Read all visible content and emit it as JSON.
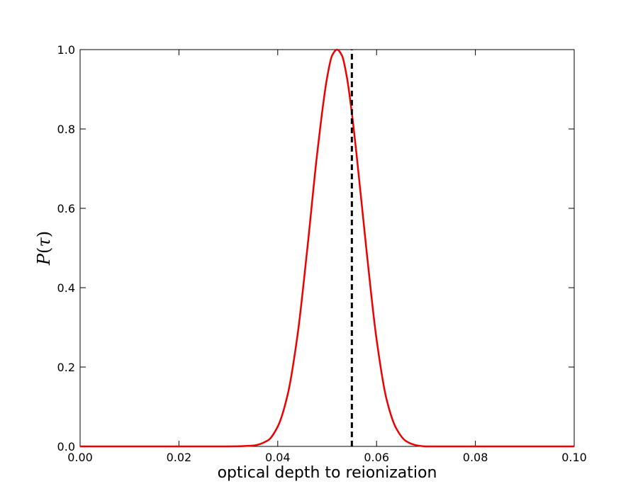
{
  "chart_data": {
    "type": "line",
    "xlabel": "optical depth to reionization",
    "ylabel": "P(τ)",
    "ylabel_parts": {
      "italic_p": "P",
      "open_paren": "(",
      "tau": "τ",
      "close_paren": ")"
    },
    "xlim": [
      0.0,
      0.1
    ],
    "ylim": [
      0.0,
      1.0
    ],
    "xticks": [
      0.0,
      0.02,
      0.04,
      0.06,
      0.08,
      0.1
    ],
    "xtick_labels": [
      "0.00",
      "0.02",
      "0.04",
      "0.06",
      "0.08",
      "0.10"
    ],
    "yticks": [
      0.0,
      0.2,
      0.4,
      0.6,
      0.8,
      1.0
    ],
    "ytick_labels": [
      "0.0",
      "0.2",
      "0.4",
      "0.6",
      "0.8",
      "1.0"
    ],
    "grid": false,
    "legend": "none",
    "series": [
      {
        "style": "solid",
        "color": "#ee0000",
        "x": [
          0.0,
          0.01,
          0.02,
          0.03,
          0.035,
          0.038,
          0.04,
          0.042,
          0.044,
          0.046,
          0.048,
          0.05,
          0.051,
          0.052,
          0.053,
          0.054,
          0.055,
          0.056,
          0.058,
          0.06,
          0.062,
          0.064,
          0.066,
          0.068,
          0.07,
          0.08,
          0.09,
          0.1
        ],
        "y": [
          0.0,
          0.0,
          0.0,
          0.0,
          0.002,
          0.015,
          0.05,
          0.13,
          0.28,
          0.5,
          0.74,
          0.93,
          0.985,
          1.0,
          0.985,
          0.93,
          0.84,
          0.73,
          0.49,
          0.27,
          0.12,
          0.045,
          0.013,
          0.003,
          0.0,
          0.0,
          0.0,
          0.0
        ]
      },
      {
        "style": "dashed",
        "color": "#000000",
        "x": [
          0.055,
          0.055
        ],
        "y": [
          0.0,
          1.0
        ]
      }
    ]
  }
}
